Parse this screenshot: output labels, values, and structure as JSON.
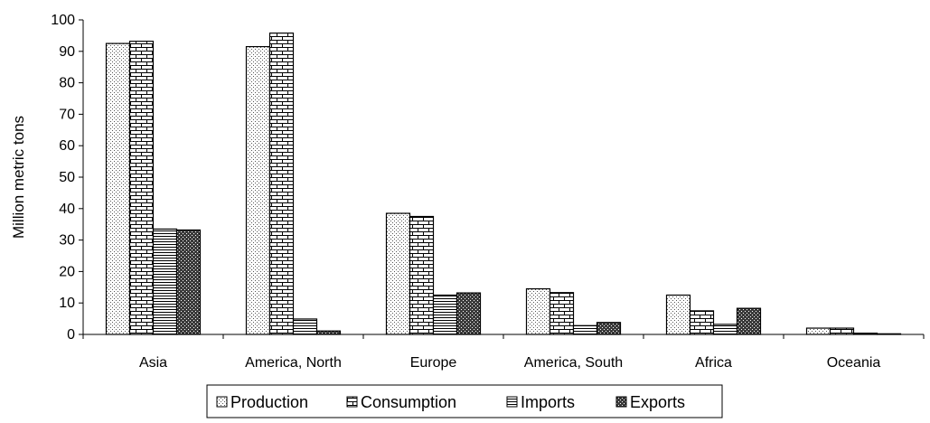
{
  "chart_data": {
    "type": "bar",
    "title": "",
    "xlabel": "",
    "ylabel": "Million metric tons",
    "ylim": [
      0,
      100
    ],
    "yticks": [
      0,
      10,
      20,
      30,
      40,
      50,
      60,
      70,
      80,
      90,
      100
    ],
    "grid": false,
    "legend_position": "bottom",
    "categories": [
      "Asia",
      "America, North",
      "Europe",
      "America, South",
      "Africa",
      "Oceania"
    ],
    "series": [
      {
        "name": "Production",
        "pattern": "dots",
        "values": [
          92.5,
          91.5,
          38.5,
          14.5,
          12.5,
          2.0
        ]
      },
      {
        "name": "Consumption",
        "pattern": "bricks",
        "values": [
          93.2,
          95.8,
          37.5,
          13.3,
          7.5,
          2.0
        ]
      },
      {
        "name": "Imports",
        "pattern": "hlines",
        "values": [
          33.5,
          4.9,
          12.5,
          2.8,
          3.2,
          0.4
        ]
      },
      {
        "name": "Exports",
        "pattern": "crosshatch",
        "values": [
          33.2,
          1.1,
          13.2,
          3.8,
          8.3,
          0.2
        ]
      }
    ]
  }
}
